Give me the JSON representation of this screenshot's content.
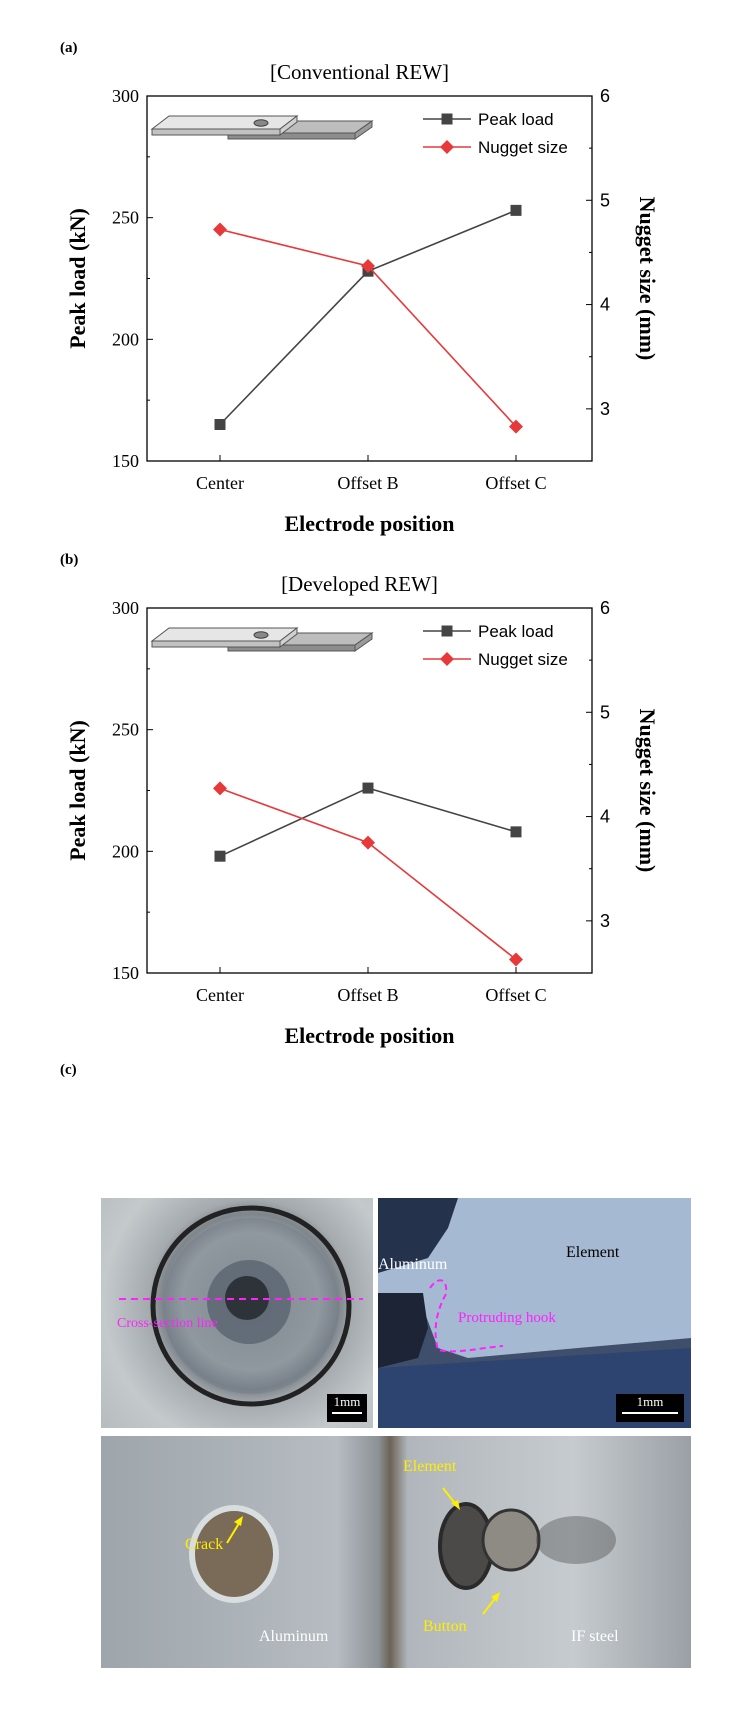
{
  "panels": {
    "a": "(a)",
    "b": "(b)",
    "c": "(c)"
  },
  "chart_data": [
    {
      "type": "line",
      "title": "[Conventional REW]",
      "categories": [
        "Center",
        "Offset B",
        "Offset C"
      ],
      "xlabel": "Electrode position",
      "ylabel": "Peak load (kN)",
      "y2label": "Nugget size (mm)",
      "ylim": [
        150,
        300
      ],
      "y2lim": [
        2.5,
        6
      ],
      "yticks": [
        150,
        200,
        250,
        300
      ],
      "y2ticks": [
        3,
        4,
        5,
        6
      ],
      "series": [
        {
          "name": "Peak load",
          "axis": "left",
          "color": "#444444",
          "marker": "square",
          "values": [
            165,
            228,
            253
          ]
        },
        {
          "name": "Nugget size",
          "axis": "right",
          "color": "#e8393a",
          "marker": "diamond",
          "values": [
            4.72,
            4.37,
            2.83
          ]
        }
      ],
      "legend": "top-right"
    },
    {
      "type": "line",
      "title": "[Developed REW]",
      "categories": [
        "Center",
        "Offset B",
        "Offset C"
      ],
      "xlabel": "Electrode position",
      "ylabel": "Peak load (kN)",
      "y2label": "Nugget size (mm)",
      "ylim": [
        150,
        300
      ],
      "y2lim": [
        2.5,
        6
      ],
      "yticks": [
        150,
        200,
        250,
        300
      ],
      "y2ticks": [
        3,
        4,
        5,
        6
      ],
      "series": [
        {
          "name": "Peak load",
          "axis": "left",
          "color": "#444444",
          "marker": "square",
          "values": [
            198,
            226,
            208
          ]
        },
        {
          "name": "Nugget size",
          "axis": "right",
          "color": "#e8393a",
          "marker": "diamond",
          "values": [
            4.27,
            3.75,
            2.63
          ]
        }
      ],
      "legend": "top-right"
    }
  ],
  "photos": {
    "top_left": {
      "annotation": "Cross-section line",
      "scale": "1mm"
    },
    "top_right": {
      "label_aluminum": "Aluminum",
      "label_element": "Element",
      "annotation": "Protruding  hook",
      "scale": "1mm"
    },
    "bottom": {
      "crack": "Crack",
      "aluminum": "Aluminum",
      "element": "Element",
      "button": "Button",
      "steel": "IF steel"
    }
  }
}
